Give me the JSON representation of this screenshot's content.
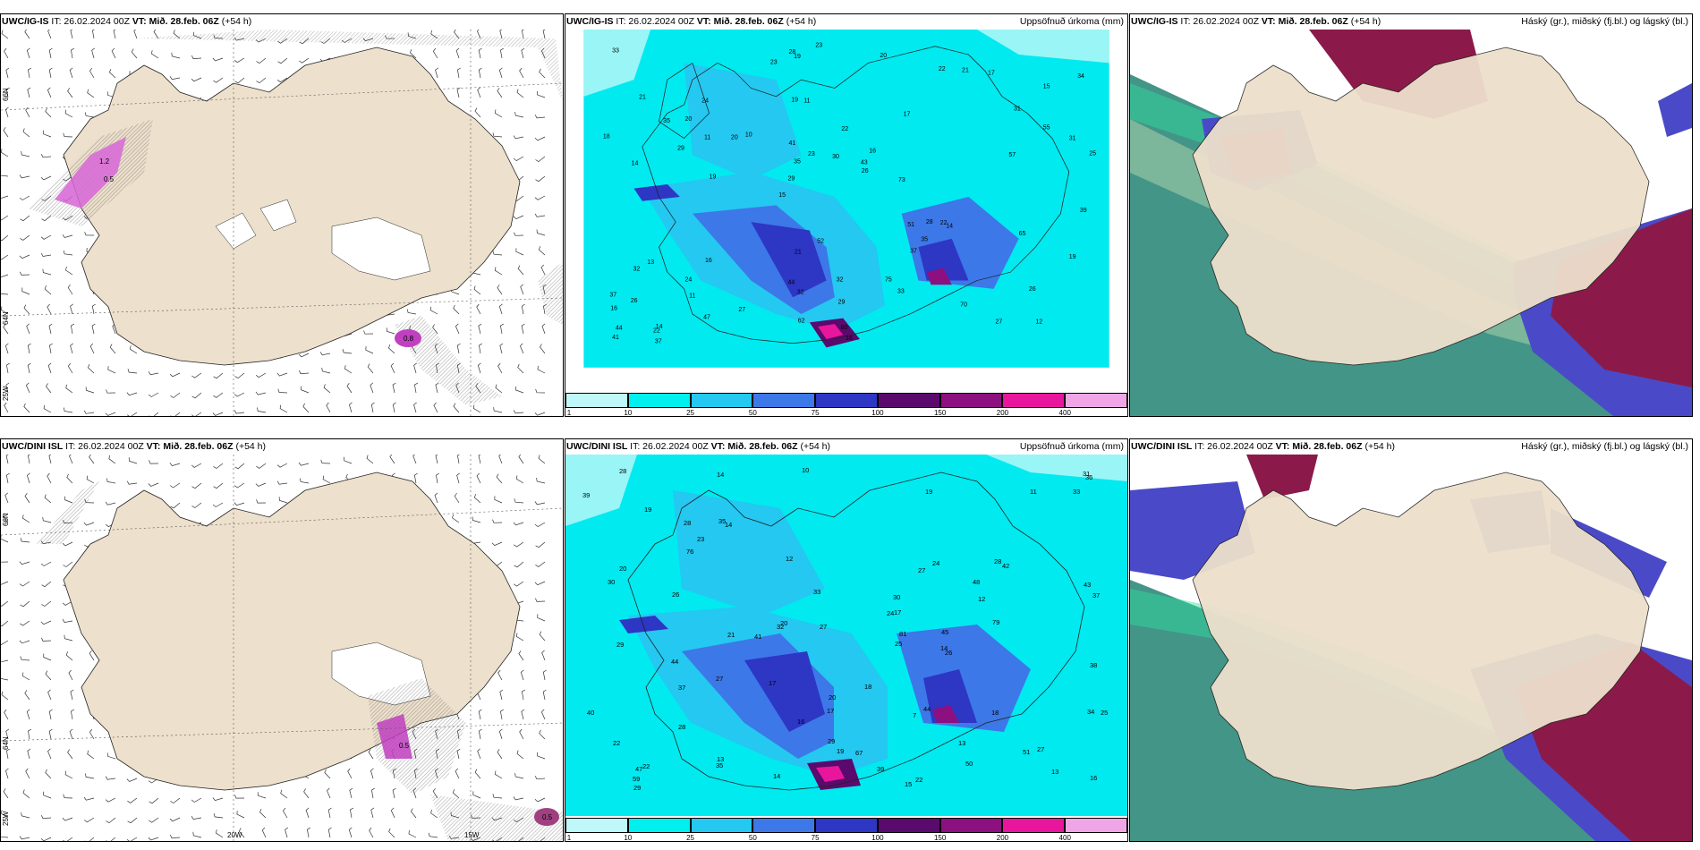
{
  "rows": [
    {
      "panels": [
        {
          "model": "UWC/IG-IS",
          "it": "IT: 26.02.2024 00Z",
          "vt": "VT: Mið. 28.feb. 06Z",
          "lead": "(+54 h)",
          "right": ""
        },
        {
          "model": "UWC/IG-IS",
          "it": "IT: 26.02.2024 00Z",
          "vt": "VT: Mið. 28.feb. 06Z",
          "lead": "(+54 h)",
          "right": "Uppsöfnuð úrkoma (mm)"
        },
        {
          "model": "UWC/IG-IS",
          "it": "IT: 26.02.2024 00Z",
          "vt": "VT: Mið. 28.feb. 06Z",
          "lead": "(+54 h)",
          "right": "Háský (gr.), miðský (fj.bl.) og lágský (bl.)"
        }
      ]
    },
    {
      "panels": [
        {
          "model": "UWC/DINI ISL",
          "it": "IT: 26.02.2024 00Z",
          "vt": "VT: Mið. 28.feb. 06Z",
          "lead": "(+54 h)",
          "right": ""
        },
        {
          "model": "UWC/DINI ISL",
          "it": "IT: 26.02.2024 00Z",
          "vt": "VT: Mið. 28.feb. 06Z",
          "lead": "(+54 h)",
          "right": "Uppsöfnuð úrkoma (mm)"
        },
        {
          "model": "UWC/DINI ISL",
          "it": "IT: 26.02.2024 00Z",
          "vt": "VT: Mið. 28.feb. 06Z",
          "lead": "(+54 h)",
          "right": "Háský (gr.), miðský (fj.bl.) og lágský (bl.)"
        }
      ]
    }
  ],
  "grid_labels": {
    "lon1": "20W",
    "lon2": "15W",
    "lat1": "66N",
    "lat2": "64N",
    "corner": "25W"
  },
  "precip_values_top": [
    "12",
    "14",
    "15",
    "15",
    "17",
    "14",
    "19",
    "22",
    "13",
    "10",
    "16",
    "11",
    "11",
    "16",
    "14",
    "21",
    "19",
    "25",
    "51",
    "55",
    "29",
    "44",
    "35",
    "24",
    "22",
    "16",
    "27",
    "26",
    "22",
    "16",
    "20",
    "29",
    "37",
    "47",
    "31",
    "43",
    "44",
    "32",
    "26",
    "32",
    "31",
    "34",
    "35",
    "33",
    "24",
    "37",
    "41",
    "32",
    "17",
    "23",
    "19",
    "18",
    "20",
    "21",
    "22",
    "20",
    "23",
    "23",
    "19",
    "21",
    "27",
    "28",
    "11",
    "37",
    "33",
    "35",
    "39",
    "41",
    "29",
    "30",
    "26",
    "73",
    "65",
    "62",
    "57",
    "52",
    "70",
    "80",
    "75",
    "28"
  ],
  "precip_values_bottom": [
    "14",
    "15",
    "13",
    "13",
    "14",
    "19",
    "21",
    "13",
    "10",
    "12",
    "11",
    "19",
    "20",
    "17",
    "19",
    "24",
    "20",
    "35",
    "41",
    "39",
    "7",
    "36",
    "30",
    "47",
    "42",
    "44",
    "40",
    "37",
    "28",
    "26",
    "27",
    "22",
    "20",
    "33",
    "28",
    "45",
    "34",
    "22",
    "24",
    "27",
    "17",
    "12",
    "25",
    "22",
    "14",
    "44",
    "38",
    "39",
    "28",
    "29",
    "31",
    "43",
    "16",
    "18",
    "27",
    "28",
    "32",
    "33",
    "35",
    "29",
    "51",
    "50",
    "76",
    "79",
    "67",
    "59",
    "81",
    "37",
    "29",
    "27",
    "16",
    "18",
    "23",
    "26",
    "48",
    "14",
    "25",
    "30",
    "17"
  ],
  "colorbar": {
    "ticks": [
      "1",
      "10",
      "25",
      "50",
      "75",
      "100",
      "150",
      "200",
      "400"
    ],
    "colors": [
      "#bff8f8",
      "#00f0f0",
      "#24c8f0",
      "#3c78e8",
      "#2e36c4",
      "#5a0a6c",
      "#8c1080",
      "#e8169c",
      "#f0a6e6"
    ]
  },
  "wind_values_top": [
    "0.8",
    "1.2",
    "0.5"
  ],
  "wind_values_bottom": [
    "0.5",
    "0.5"
  ],
  "colors": {
    "land": "#ede0cc",
    "sea_precip": "#00eaf0",
    "high_cloud": "#8b1a4a",
    "mid_cloud": "#4a4ac8",
    "low_cloud": "#2f8a7a"
  }
}
